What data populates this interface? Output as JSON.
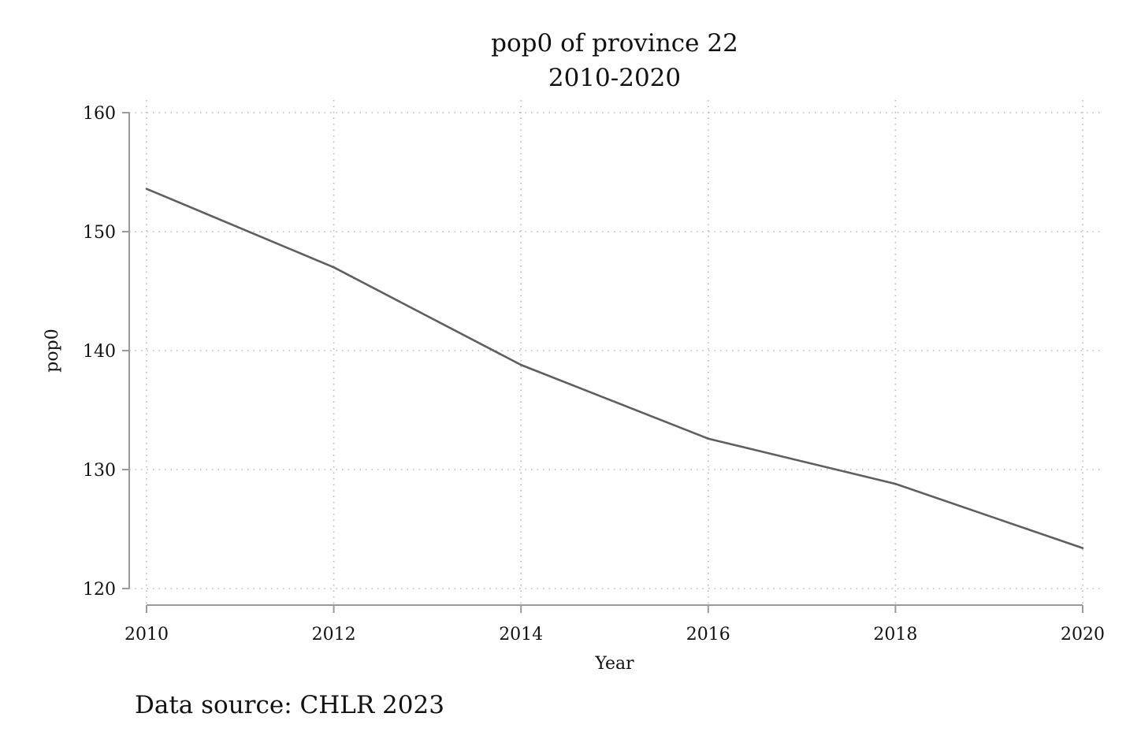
{
  "chart_data": {
    "type": "line",
    "title": "pop0 of province 22",
    "subtitle": "2010-2020",
    "xlabel": "Year",
    "ylabel": "pop0",
    "note": "Data source: CHLR 2023",
    "x": [
      2010,
      2012,
      2014,
      2016,
      2018,
      2020
    ],
    "series": [
      {
        "values": [
          153.6,
          147.0,
          138.8,
          132.6,
          128.8,
          123.4
        ],
        "color": "#5f5f5f"
      }
    ],
    "xlim": [
      2010,
      2020
    ],
    "ylim": [
      120,
      160
    ],
    "x_ticks": [
      "2010",
      "2012",
      "2014",
      "2016",
      "2018",
      "2020"
    ],
    "y_ticks": [
      "120",
      "130",
      "140",
      "150",
      "160"
    ],
    "grid": true,
    "legend": "none"
  }
}
